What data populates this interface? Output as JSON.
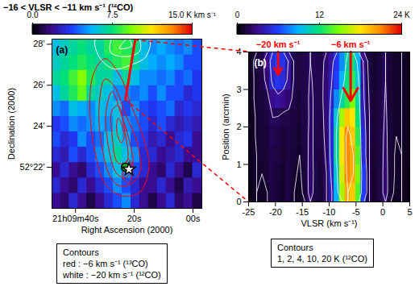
{
  "chart_data": [
    {
      "type": "heatmap",
      "panel": "(a)",
      "title": "−16 < VLSR < −11 km s⁻¹ (¹²CO)",
      "x_label": "Right Ascension (2000)",
      "y_label": "Declination (2000)",
      "xlim": [
        48,
        -3
      ],
      "ylim": [
        20,
        28.25
      ],
      "xticks": [
        {
          "value": 40,
          "label": "21h09m40s"
        },
        {
          "value": 20,
          "label": "20s"
        },
        {
          "value": 0,
          "label": "00s"
        }
      ],
      "yticks": [
        {
          "value": 22,
          "label": "52°22'"
        },
        {
          "value": 24,
          "label": "24'"
        },
        {
          "value": 26,
          "label": "26'"
        },
        {
          "value": 28,
          "label": "28'"
        }
      ],
      "x_bins": [
        48,
        45,
        42,
        39,
        36,
        33,
        30,
        27,
        24,
        21,
        18,
        15,
        12,
        9,
        6,
        3,
        0,
        -3
      ],
      "y_bins": [
        20,
        20.75,
        21.5,
        22.25,
        23,
        23.75,
        24.5,
        25.25,
        26,
        26.75,
        27.5,
        28.25
      ],
      "cells": [
        [
          2,
          1.5,
          3,
          2,
          1,
          2,
          3,
          4,
          5,
          3,
          2,
          1,
          2,
          3,
          1.5,
          2,
          1
        ],
        [
          3,
          2,
          1.5,
          3,
          2,
          3,
          4,
          5,
          4,
          3,
          2,
          2,
          3,
          2,
          1,
          2.5,
          2
        ],
        [
          2,
          3,
          2,
          1.5,
          3,
          4,
          5,
          6,
          5,
          4,
          3,
          2,
          1.5,
          3,
          2,
          1,
          3
        ],
        [
          3,
          2.5,
          4,
          3,
          4,
          5,
          6,
          7,
          6,
          5,
          3,
          3,
          2,
          2.5,
          3,
          2,
          2
        ],
        [
          4,
          3,
          3.5,
          5,
          4,
          4.5,
          6,
          6.5,
          5.5,
          4,
          3.5,
          2.5,
          3,
          2,
          3,
          3.5,
          2
        ],
        [
          3.5,
          4,
          5,
          4.5,
          5,
          5.5,
          5,
          6,
          5,
          4.5,
          4,
          3,
          4,
          3,
          2.5,
          3,
          2.5
        ],
        [
          5,
          4.5,
          6,
          5.5,
          5,
          6,
          5.5,
          6,
          4,
          5,
          4,
          3.5,
          4,
          4.5,
          3,
          3.5,
          3
        ],
        [
          6,
          7,
          8,
          9,
          7,
          6.5,
          6,
          5,
          5,
          4.5,
          5,
          4,
          5,
          4,
          4,
          3,
          3.5
        ],
        [
          7,
          7.5,
          8.5,
          9.5,
          8,
          7,
          7,
          6,
          7,
          6,
          5,
          5,
          4.5,
          5,
          4,
          4.5,
          3.5
        ],
        [
          6.5,
          7,
          7.5,
          8,
          7.5,
          7,
          7.5,
          8,
          8.5,
          7,
          6,
          5.5,
          5,
          5.5,
          5,
          4,
          4
        ],
        [
          6,
          6.5,
          7,
          7.5,
          7,
          7,
          8,
          8.5,
          8,
          7.5,
          6,
          5,
          5.5,
          5,
          4.5,
          5,
          4
        ]
      ],
      "colorbar": {
        "range": [
          0,
          15
        ],
        "ticks": [
          {
            "value": 0,
            "label": "0.0"
          },
          7.5,
          {
            "value": 15,
            "label": "15.0 K km s⁻¹"
          }
        ]
      },
      "legend": "bottom",
      "legend_title": "Contours",
      "series": [
        {
          "name": "red : −6 km s⁻¹ (¹³CO)",
          "color": "red",
          "rings": [
            {
              "x": [
                30,
                33,
                35,
                34,
                30,
                25,
                21,
                17,
                15,
                18,
                24
              ],
              "y": [
                21.2,
                22.5,
                24.5,
                26.5,
                27.3,
                26.5,
                25,
                23.5,
                22,
                20.8,
                20.6
              ]
            },
            {
              "x": [
                28,
                31,
                32,
                30,
                27,
                23,
                19,
                18,
                21,
                25
              ],
              "y": [
                21.5,
                23,
                24.8,
                26.3,
                26,
                24.6,
                23.2,
                21.8,
                21.2,
                21.1
              ]
            },
            {
              "x": [
                26,
                29,
                29.5,
                27.5,
                24.5,
                21.5,
                20.5,
                23
              ],
              "y": [
                21.7,
                23.2,
                24.8,
                25.7,
                24.6,
                23.2,
                22,
                21.5
              ]
            },
            {
              "x": [
                25.5,
                27.5,
                27.5,
                25.5,
                23,
                22.5
              ],
              "y": [
                22.2,
                23.5,
                24.8,
                25,
                23.6,
                22.3
              ]
            },
            {
              "x": [
                24.5,
                26,
                25.5,
                24,
                23.5
              ],
              "y": [
                23.2,
                23.8,
                24.4,
                24,
                23.4
              ]
            },
            {
              "x": [
                24,
                22,
                20.5,
                22
              ],
              "y": [
                21.6,
                22.4,
                21.9,
                21.2
              ]
            }
          ]
        },
        {
          "name": "white : −20 km s⁻¹ (¹²CO)",
          "color": "white",
          "rings": [
            {
              "x": [
                32,
                27,
                21,
                16,
                15,
                33
              ],
              "y": [
                27.4,
                26.8,
                27,
                27.4,
                28.3,
                28.3
              ]
            },
            {
              "x": [
                28,
                22,
                18,
                19,
                27
              ],
              "y": [
                27.6,
                27.4,
                27.7,
                28.4,
                28.4
              ]
            },
            {
              "x": [
                25,
                21,
                22
              ],
              "y": [
                27.8,
                27.9,
                28.3
              ]
            }
          ]
        }
      ],
      "cut": {
        "x": [
          23,
          19.7
        ],
        "y": [
          25.3,
          28.2
        ],
        "color": "red"
      },
      "markers": [
        {
          "x": 23,
          "y": 22,
          "marker": "circle",
          "color": "#00b000"
        },
        {
          "x": 21.8,
          "y": 21.9,
          "marker": "star",
          "color": "white"
        }
      ]
    },
    {
      "type": "heatmap",
      "panel": "(b)",
      "x_label": "VLSR (km s⁻¹)",
      "y_label": "Position (arcmin)",
      "xlim": [
        -25,
        5
      ],
      "ylim": [
        0,
        4
      ],
      "xticks": [
        -25,
        -20,
        -15,
        -10,
        -5,
        0,
        5
      ],
      "yticks": [
        0,
        1,
        2,
        3,
        4
      ],
      "x_bins": [
        -25,
        -24,
        -23,
        -22,
        -21,
        -20,
        -19,
        -18,
        -17,
        -16,
        -15,
        -14,
        -13,
        -12,
        -11,
        -10,
        -9,
        -8,
        -7,
        -6,
        -5,
        -4,
        -3,
        -2,
        -1,
        0,
        1,
        2,
        3,
        4,
        5
      ],
      "y_bins": [
        0,
        0.5,
        1,
        1.5,
        2,
        2.5,
        3,
        3.5,
        4
      ],
      "cells": [
        [
          0.5,
          1,
          0.8,
          1,
          1.5,
          1.2,
          1,
          1.5,
          1,
          0.8,
          1.2,
          2.5,
          1.5,
          1.2,
          2,
          4,
          9,
          16,
          20,
          19,
          14,
          6,
          2,
          1,
          1.5,
          2.5,
          1.2,
          0.8,
          1,
          0.6
        ],
        [
          0.6,
          1,
          1,
          1.2,
          1.5,
          1.3,
          1,
          1.5,
          1.1,
          0.9,
          1.3,
          2.5,
          1.6,
          1.3,
          2,
          4.5,
          10,
          17,
          21,
          20,
          15,
          6,
          2,
          1,
          1.5,
          2.5,
          1.2,
          0.9,
          1,
          0.6
        ],
        [
          0.6,
          1,
          1.1,
          1.2,
          1.6,
          1.4,
          1.2,
          1.4,
          1.2,
          1,
          1.4,
          2.4,
          1.6,
          1.4,
          2.2,
          5,
          11,
          18,
          21,
          20,
          14,
          5,
          2,
          1.1,
          1.5,
          2.4,
          1.2,
          0.9,
          1,
          0.7
        ],
        [
          0.7,
          1.1,
          1.1,
          1.3,
          1.8,
          1.6,
          1.3,
          1.5,
          1.3,
          1.1,
          1.5,
          2.3,
          1.7,
          1.5,
          2.4,
          5,
          11,
          18,
          21,
          19,
          13,
          5,
          2,
          1.2,
          1.5,
          2.3,
          1.3,
          1,
          1,
          0.7
        ],
        [
          0.7,
          1.1,
          1.2,
          1.4,
          2,
          1.9,
          1.6,
          1.6,
          1.4,
          1.2,
          1.5,
          2.2,
          1.8,
          1.6,
          2.5,
          5,
          10,
          16,
          19,
          18,
          12,
          4.5,
          2,
          1.2,
          1.4,
          2.2,
          1.3,
          1,
          1,
          0.7
        ],
        [
          0.8,
          1.2,
          1.3,
          1.6,
          3,
          3.5,
          3,
          2.5,
          1.6,
          1.3,
          1.6,
          2.2,
          1.8,
          1.7,
          2.6,
          4.5,
          8,
          11,
          13,
          15,
          11,
          4,
          1.8,
          1.2,
          1.4,
          2.1,
          1.2,
          1,
          1,
          0.7
        ],
        [
          0.8,
          1.2,
          1.5,
          2.5,
          4.5,
          5.5,
          5,
          3.5,
          1.8,
          1.4,
          1.6,
          2.1,
          1.8,
          1.7,
          2.5,
          4,
          6,
          9,
          12,
          13,
          10,
          3.5,
          1.6,
          1.1,
          1.3,
          2,
          1.2,
          1,
          1,
          0.7
        ],
        [
          0.8,
          1.3,
          1.6,
          3,
          5,
          6,
          5.5,
          3.8,
          1.8,
          1.4,
          1.6,
          2,
          1.8,
          1.6,
          2.4,
          3.5,
          5.5,
          8,
          11,
          12,
          9,
          3,
          1.5,
          1.1,
          1.3,
          2,
          1.2,
          1,
          1,
          0.7
        ]
      ],
      "colorbar": {
        "range": [
          0,
          24
        ],
        "ticks": [
          0,
          12,
          {
            "value": 24,
            "label": "24 K"
          }
        ]
      },
      "legend": "bottom",
      "legend_title": "Contours",
      "series": [
        {
          "name": "1, 2, 4, 10, 20 K (¹²CO)",
          "color": "white",
          "levels": [
            1,
            2,
            4,
            10,
            20
          ]
        }
      ],
      "annotations": [
        {
          "text": "−20 km s⁻¹",
          "x": -19.5,
          "y": 3.4,
          "color": "red"
        },
        {
          "text": "−6 km s⁻¹",
          "x": -6,
          "y": 2.7,
          "color": "red"
        }
      ]
    }
  ]
}
